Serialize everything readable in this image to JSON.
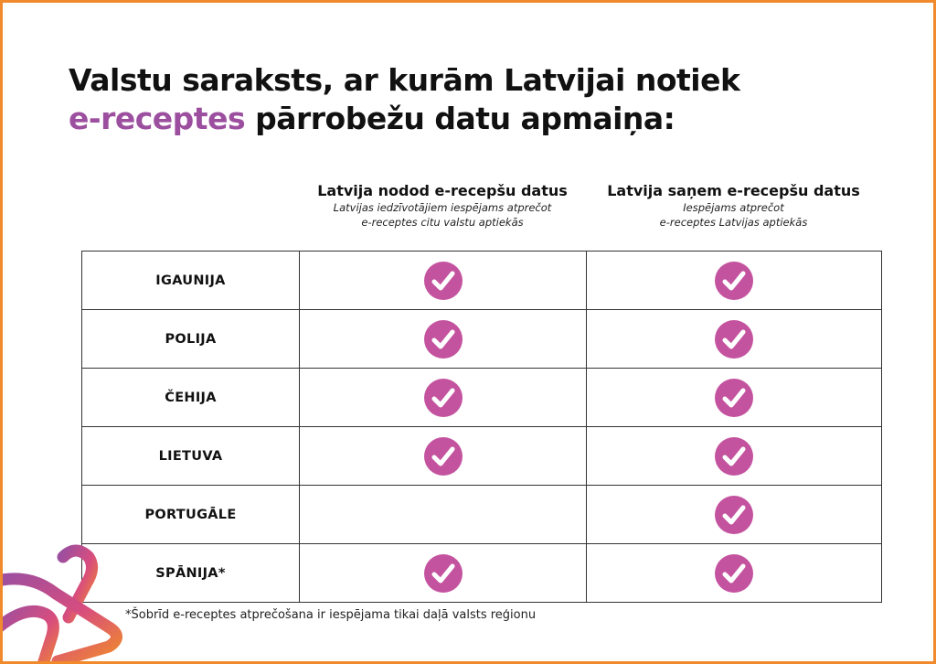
{
  "title": {
    "line1": "Valstu saraksts, ar kurām Latvijai notiek",
    "accent": "e-receptes",
    "line2_rest": " pārrobežu datu apmaiņa:"
  },
  "columns": [
    {
      "heading": "Latvija nodod e-recepšu datus",
      "note_line1": "Latvijas iedzīvotājiem iespējams atprečot",
      "note_line2": "e-receptes citu valstu aptiekās"
    },
    {
      "heading": "Latvija saņem e-recepšu datus",
      "note_line1": "Iespējams atprečot",
      "note_line2": "e-receptes Latvijas aptiekās"
    }
  ],
  "rows": [
    {
      "country": "IGAUNIJA",
      "sends": true,
      "receives": true
    },
    {
      "country": "POLIJA",
      "sends": true,
      "receives": true
    },
    {
      "country": "ČEHIJA",
      "sends": true,
      "receives": true
    },
    {
      "country": "LIETUVA",
      "sends": true,
      "receives": true
    },
    {
      "country": "PORTUGĀLE",
      "sends": false,
      "receives": true
    },
    {
      "country": "SPĀNIJA*",
      "sends": true,
      "receives": true
    }
  ],
  "footnote": "*Šobrīd e-receptes atprečošana ir iespējama tikai daļā valsts reģionu",
  "colors": {
    "accent_purple": "#9c4f9f",
    "check_magenta": "#c4539f",
    "border_orange": "#f08a2c",
    "text": "#111111"
  },
  "icons": {
    "check": "check-circle-icon",
    "logo": "brand-logo-icon"
  }
}
